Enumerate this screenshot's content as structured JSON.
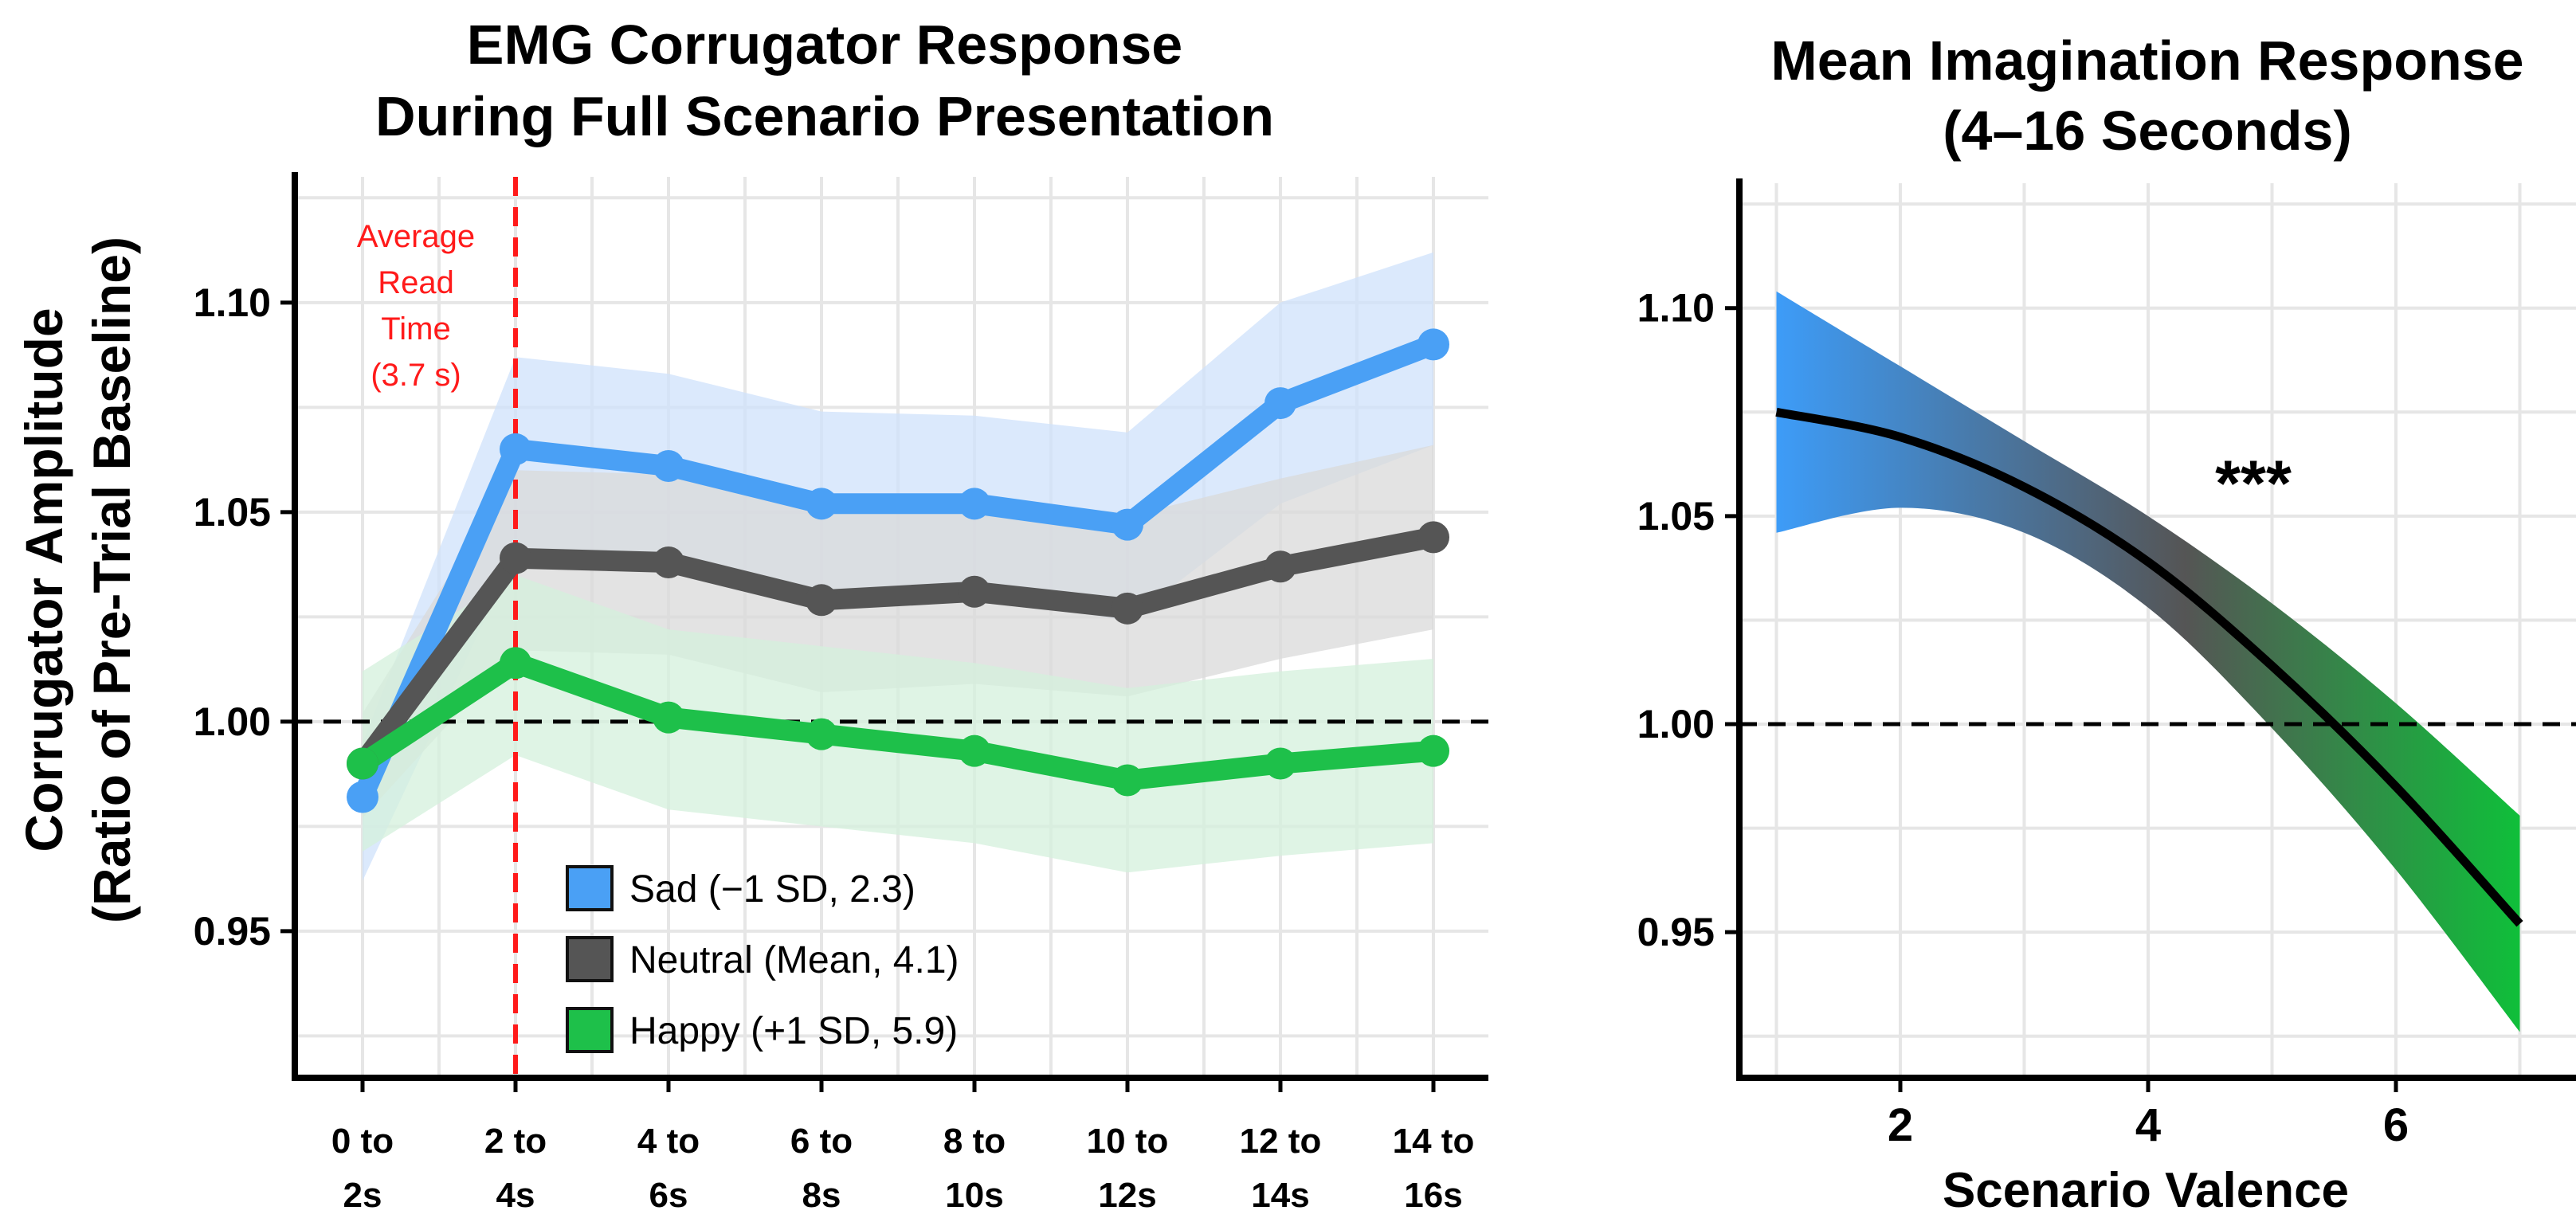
{
  "chart_data": [
    {
      "type": "line",
      "title": [
        "EMG Corrugator Response",
        "During Full Scenario Presentation"
      ],
      "ylabel": [
        "Corrugator Amplitude",
        "(Ratio of Pre-Trial Baseline)"
      ],
      "xlabel": "",
      "categories": [
        [
          "0 to",
          "2s"
        ],
        [
          "2 to",
          "4s"
        ],
        [
          "4 to",
          "6s"
        ],
        [
          "6 to",
          "8s"
        ],
        [
          "8 to",
          "10s"
        ],
        [
          "10 to",
          "12s"
        ],
        [
          "12 to",
          "14s"
        ],
        [
          "14 to",
          "16s"
        ]
      ],
      "ylim": [
        0.915,
        1.13
      ],
      "yticks": [
        0.95,
        1.0,
        1.05,
        1.1
      ],
      "ytick_labels": [
        "0.95",
        "1.00",
        "1.05",
        "1.10"
      ],
      "reference_line": 1.0,
      "series": [
        {
          "name": "Sad (−1 SD, 2.3)",
          "color": "#4aa0f5",
          "band_color": "#cfe2fb",
          "values": [
            0.982,
            1.065,
            1.061,
            1.052,
            1.052,
            1.047,
            1.076,
            1.09
          ],
          "upper": [
            0.995,
            1.087,
            1.083,
            1.074,
            1.073,
            1.069,
            1.1,
            1.112
          ],
          "lower": [
            0.962,
            1.04,
            1.038,
            1.029,
            1.03,
            1.024,
            1.052,
            1.066
          ]
        },
        {
          "name": "Neutral (Mean, 4.1)",
          "color": "#555555",
          "band_color": "#d9d9d9",
          "values": [
            0.99,
            1.039,
            1.038,
            1.029,
            1.031,
            1.027,
            1.037,
            1.044
          ],
          "upper": [
            1.002,
            1.06,
            1.059,
            1.051,
            1.053,
            1.049,
            1.058,
            1.066
          ],
          "lower": [
            0.977,
            1.017,
            1.016,
            1.007,
            1.009,
            1.006,
            1.015,
            1.022
          ]
        },
        {
          "name": "Happy (+1 SD, 5.9)",
          "color": "#1ec04a",
          "band_color": "#d4f0dc",
          "values": [
            0.99,
            1.014,
            1.001,
            0.997,
            0.993,
            0.986,
            0.99,
            0.993
          ],
          "upper": [
            1.012,
            1.035,
            1.022,
            1.018,
            1.014,
            1.008,
            1.012,
            1.015
          ],
          "lower": [
            0.969,
            0.992,
            0.979,
            0.975,
            0.971,
            0.964,
            0.968,
            0.971
          ]
        }
      ],
      "read_time_marker": {
        "x": 3.7,
        "label": [
          "Average",
          "Read",
          "Time",
          "(3.7 s)"
        ],
        "color": "#ff1a1a"
      }
    },
    {
      "type": "line",
      "title": [
        "Mean Imagination Response",
        "(4–16 Seconds)"
      ],
      "xlabel": "Scenario Valence",
      "ylabel": "",
      "xlim": [
        0.7,
        7.3
      ],
      "ylim": [
        0.915,
        1.13
      ],
      "xticks": [
        2,
        4,
        6
      ],
      "xtick_labels": [
        "2",
        "4",
        "6"
      ],
      "yticks": [
        0.95,
        1.0,
        1.05,
        1.1
      ],
      "ytick_labels": [
        "0.95",
        "1.00",
        "1.05",
        "1.10"
      ],
      "reference_line": 1.0,
      "fit": {
        "x": [
          1,
          2,
          3,
          4,
          5,
          6,
          7
        ],
        "y": [
          1.075,
          1.069,
          1.057,
          1.039,
          1.014,
          0.985,
          0.952
        ],
        "upper": [
          1.104,
          1.086,
          1.068,
          1.05,
          1.029,
          1.005,
          0.978
        ],
        "lower": [
          1.046,
          1.052,
          1.046,
          1.028,
          0.999,
          0.965,
          0.926
        ],
        "gradient_colors": [
          "#3d9cf8",
          "#555555",
          "#0fbf3a"
        ]
      },
      "significance": "***"
    }
  ]
}
